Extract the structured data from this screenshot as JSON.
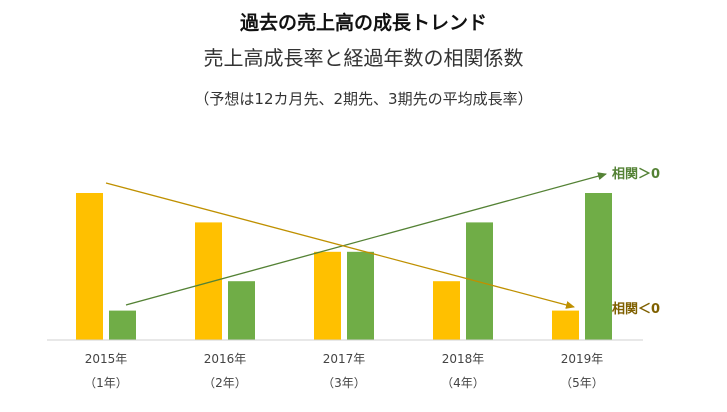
{
  "chart_data": {
    "type": "bar",
    "title": "過去の売上高の成長トレンド",
    "subtitle": "売上高成長率と経過年数の相関係数",
    "note": "（予想は12カ月先、2期先、3期先の平均成長率）",
    "categories": [
      "2015年",
      "2016年",
      "2017年",
      "2018年",
      "2019年"
    ],
    "category_sublabels": [
      "（1年）",
      "（2年）",
      "（3年）",
      "（4年）",
      "（5年）"
    ],
    "series": [
      {
        "color": "#FFC000",
        "values": [
          5,
          4,
          3,
          2,
          1
        ]
      },
      {
        "color": "#70AD47",
        "values": [
          1,
          2,
          3,
          4,
          5
        ]
      }
    ],
    "ylim": [
      0,
      5
    ],
    "grid": false,
    "annotations": [
      {
        "text": "相関＞0",
        "color": "#548235",
        "direction": "up"
      },
      {
        "text": "相関＜0",
        "color": "#7F6000",
        "direction": "down"
      }
    ]
  }
}
